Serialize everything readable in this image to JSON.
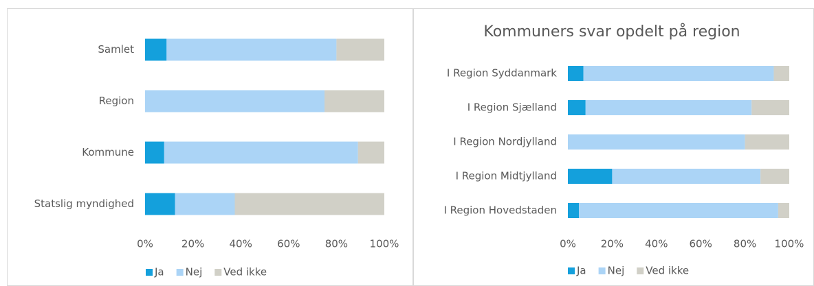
{
  "chart_data": [
    {
      "type": "bar",
      "orientation": "horizontal",
      "stacked": true,
      "categories": [
        "Samlet",
        "Region",
        "Kommune",
        "Statslig myndighed"
      ],
      "series": [
        {
          "name": "Ja",
          "color": "#14a0dc",
          "values": [
            9,
            0,
            8,
            12.5
          ]
        },
        {
          "name": "Nej",
          "color": "#abd4f6",
          "values": [
            71,
            75,
            81,
            25
          ]
        },
        {
          "name": "Ved ikke",
          "color": "#d1d0c7",
          "values": [
            20,
            25,
            11,
            62.5
          ]
        }
      ],
      "xlim": [
        0,
        100
      ],
      "xticks": [
        {
          "value": 0,
          "label": "0%"
        },
        {
          "value": 20,
          "label": "20%"
        },
        {
          "value": 40,
          "label": "40%"
        },
        {
          "value": 60,
          "label": "60%"
        },
        {
          "value": 80,
          "label": "80%"
        },
        {
          "value": 100,
          "label": "100%"
        }
      ],
      "legend": "bottom",
      "grid": false
    },
    {
      "type": "bar",
      "orientation": "horizontal",
      "stacked": true,
      "title": "Kommuners svar opdelt på region",
      "categories": [
        "I Region Syddanmark",
        "I Region Sjælland",
        "I Region Nordjylland",
        "I Region Midtjylland",
        "I Region Hovedstaden"
      ],
      "series": [
        {
          "name": "Ja",
          "color": "#14a0dc",
          "values": [
            7,
            8,
            0,
            20,
            5
          ]
        },
        {
          "name": "Nej",
          "color": "#abd4f6",
          "values": [
            86,
            75,
            80,
            67,
            90
          ]
        },
        {
          "name": "Ved ikke",
          "color": "#d1d0c7",
          "values": [
            7,
            17,
            20,
            13,
            5
          ]
        }
      ],
      "xlim": [
        0,
        100
      ],
      "xticks": [
        {
          "value": 0,
          "label": "0%"
        },
        {
          "value": 20,
          "label": "20%"
        },
        {
          "value": 40,
          "label": "40%"
        },
        {
          "value": 60,
          "label": "60%"
        },
        {
          "value": 80,
          "label": "80%"
        },
        {
          "value": 100,
          "label": "100%"
        }
      ],
      "legend": "bottom",
      "grid": false
    }
  ]
}
